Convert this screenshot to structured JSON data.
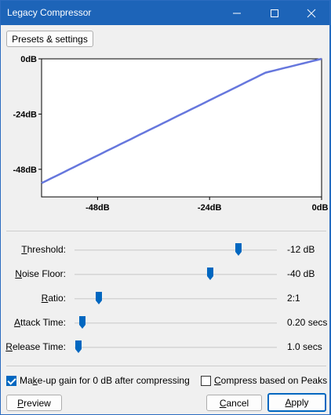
{
  "window": {
    "title": "Legacy Compressor",
    "controls": {
      "minimize_icon": "minimize-icon",
      "maximize_icon": "maximize-icon",
      "close_icon": "close-icon"
    }
  },
  "toolbar": {
    "presets_label": "Presets & settings"
  },
  "graph": {
    "y_ticks": [
      "0dB",
      "-24dB",
      "-48dB"
    ],
    "x_ticks": [
      "-48dB",
      "-24dB",
      "0dB"
    ],
    "line_color": "#6677dd",
    "curve": {
      "threshold_db": -12,
      "ratio": 2,
      "range_db": 60
    }
  },
  "sliders": [
    {
      "key": "T",
      "label_rest": "hreshold:",
      "value": "-12 dB",
      "position": 0.81
    },
    {
      "key": "N",
      "label_rest": "oise Floor:",
      "value": "-40 dB",
      "position": 0.67
    },
    {
      "key": "R",
      "label_rest": "atio:",
      "value": "2:1",
      "position": 0.12
    },
    {
      "key": "A",
      "label_rest": "ttack Time:",
      "value": "0.20 secs",
      "position": 0.04
    },
    {
      "key": "R",
      "label_rest": "elease Time:",
      "value": "1.0 secs",
      "position": 0.02
    }
  ],
  "options": {
    "makeup": {
      "label_pre": "Ma",
      "key": "k",
      "label_post": "e-up gain for 0 dB after compressing",
      "checked": true
    },
    "peaks": {
      "key": "C",
      "label_post": "ompress based on Peaks",
      "checked": false
    }
  },
  "buttons": {
    "preview_key": "P",
    "preview_rest": "review",
    "cancel_key": "C",
    "cancel_rest": "ancel",
    "apply_key": "A",
    "apply_rest": "pply"
  },
  "colors": {
    "accent": "#0067c0",
    "titlebar": "#1d64b8"
  }
}
